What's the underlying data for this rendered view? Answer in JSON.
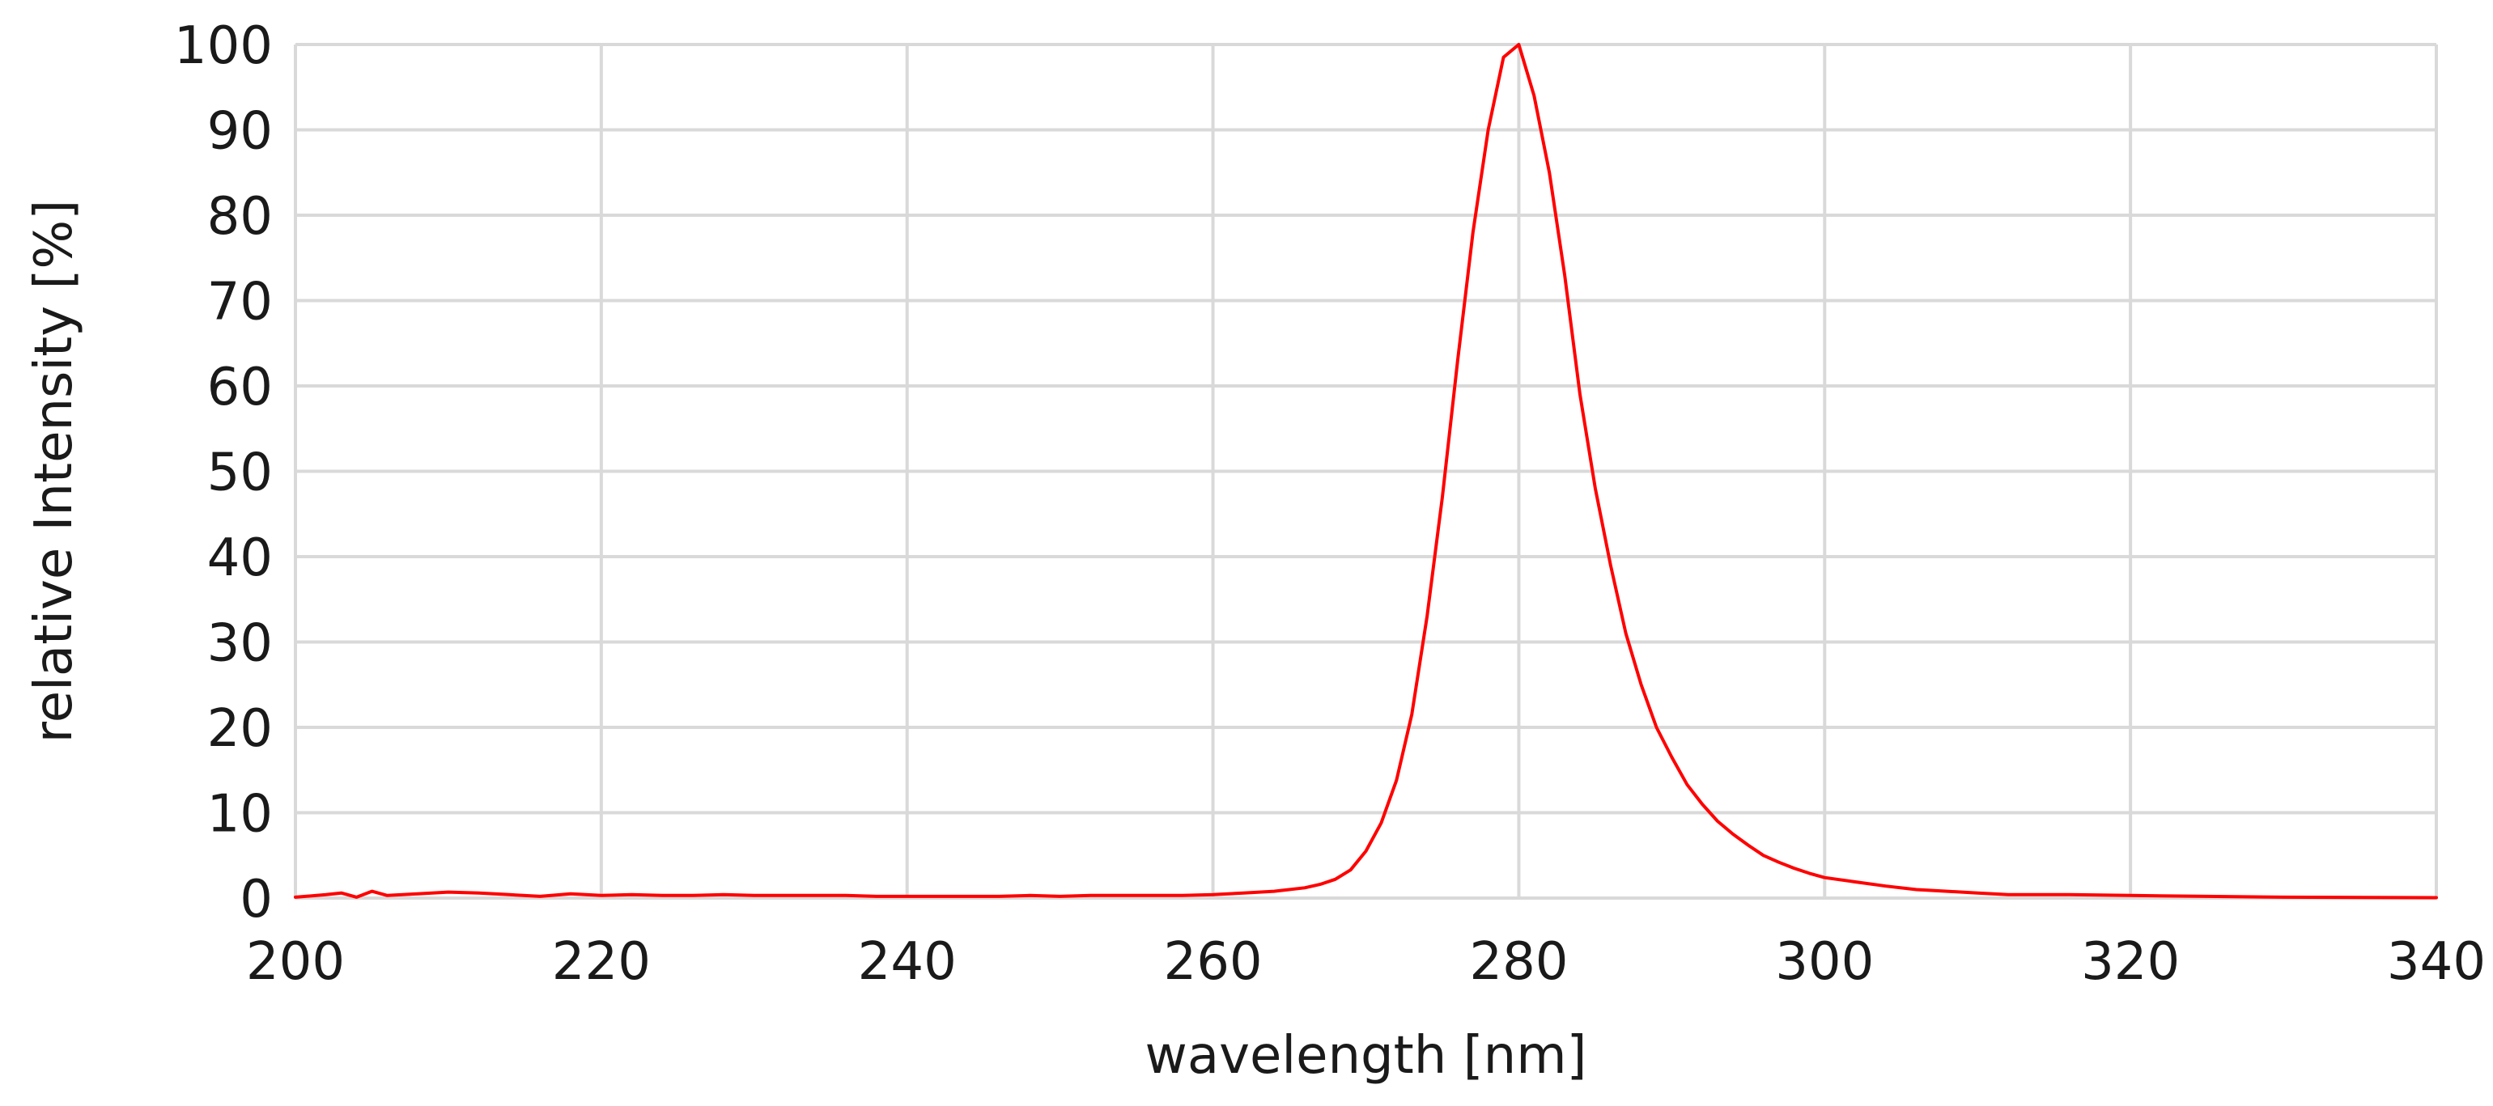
{
  "chart_data": {
    "type": "line",
    "title": "",
    "xlabel": "wavelength [nm]",
    "ylabel": "relative Intensity [%]",
    "xlim": [
      200,
      340
    ],
    "ylim": [
      0,
      100
    ],
    "x_ticks": [
      200,
      220,
      240,
      260,
      280,
      300,
      320,
      340
    ],
    "y_ticks": [
      0,
      10,
      20,
      30,
      40,
      50,
      60,
      70,
      80,
      90,
      100
    ],
    "grid": true,
    "legend": "none",
    "series": [
      {
        "color": "#ff0000",
        "points": [
          [
            200,
            0.1
          ],
          [
            202,
            0.4
          ],
          [
            203,
            0.6
          ],
          [
            204,
            0.1
          ],
          [
            205,
            0.8
          ],
          [
            206,
            0.3
          ],
          [
            208,
            0.5
          ],
          [
            210,
            0.7
          ],
          [
            212,
            0.6
          ],
          [
            214,
            0.4
          ],
          [
            216,
            0.2
          ],
          [
            218,
            0.5
          ],
          [
            220,
            0.3
          ],
          [
            222,
            0.4
          ],
          [
            224,
            0.3
          ],
          [
            226,
            0.3
          ],
          [
            228,
            0.4
          ],
          [
            230,
            0.3
          ],
          [
            232,
            0.3
          ],
          [
            234,
            0.3
          ],
          [
            236,
            0.3
          ],
          [
            238,
            0.2
          ],
          [
            240,
            0.2
          ],
          [
            242,
            0.2
          ],
          [
            244,
            0.2
          ],
          [
            246,
            0.2
          ],
          [
            248,
            0.3
          ],
          [
            250,
            0.2
          ],
          [
            252,
            0.3
          ],
          [
            254,
            0.3
          ],
          [
            256,
            0.3
          ],
          [
            258,
            0.3
          ],
          [
            260,
            0.4
          ],
          [
            262,
            0.6
          ],
          [
            264,
            0.8
          ],
          [
            266,
            1.2
          ],
          [
            267,
            1.6
          ],
          [
            268,
            2.2
          ],
          [
            269,
            3.3
          ],
          [
            270,
            5.5
          ],
          [
            271,
            8.8
          ],
          [
            272,
            13.8
          ],
          [
            273,
            21.5
          ],
          [
            274,
            33
          ],
          [
            275,
            47
          ],
          [
            276,
            63
          ],
          [
            277,
            78
          ],
          [
            278,
            90
          ],
          [
            279,
            98.5
          ],
          [
            280,
            100
          ],
          [
            281,
            94
          ],
          [
            282,
            85
          ],
          [
            283,
            73
          ],
          [
            284,
            59
          ],
          [
            285,
            48
          ],
          [
            286,
            39
          ],
          [
            287,
            31
          ],
          [
            288,
            25
          ],
          [
            289,
            20
          ],
          [
            290,
            16.5
          ],
          [
            291,
            13.3
          ],
          [
            292,
            11
          ],
          [
            293,
            9
          ],
          [
            294,
            7.5
          ],
          [
            295,
            6.2
          ],
          [
            296,
            5
          ],
          [
            297,
            4.2
          ],
          [
            298,
            3.5
          ],
          [
            299,
            2.9
          ],
          [
            300,
            2.4
          ],
          [
            302,
            1.9
          ],
          [
            304,
            1.4
          ],
          [
            306,
            1
          ],
          [
            308,
            0.8
          ],
          [
            310,
            0.6
          ],
          [
            312,
            0.4
          ],
          [
            316,
            0.4
          ],
          [
            320,
            0.3
          ],
          [
            325,
            0.2
          ],
          [
            330,
            0.1
          ],
          [
            340,
            0.05
          ]
        ]
      }
    ]
  }
}
